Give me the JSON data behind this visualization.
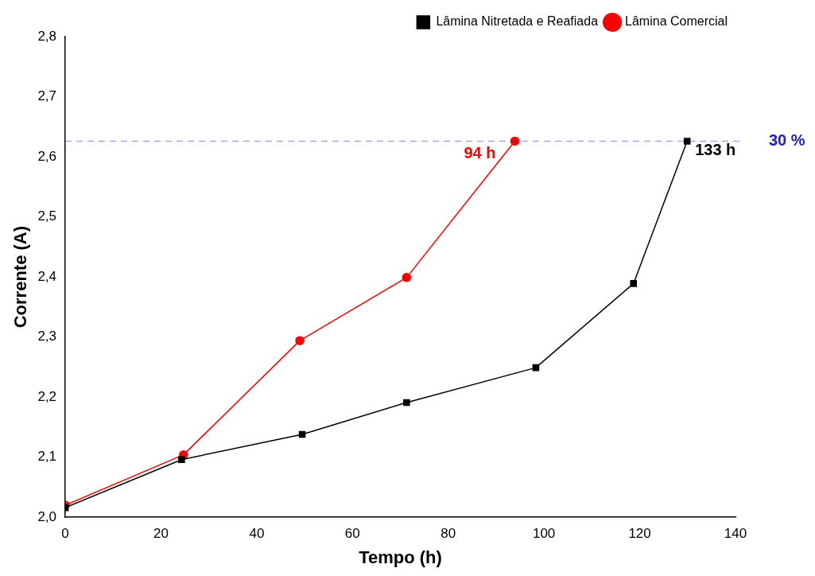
{
  "chart_data": {
    "type": "line",
    "xlabel": "Tempo (h)",
    "ylabel": "Corrente (A)",
    "xlim": [
      0,
      140
    ],
    "xticks": [
      0,
      20,
      40,
      60,
      80,
      100,
      120,
      140
    ],
    "ylim": [
      2.0,
      2.8
    ],
    "yticks": [
      {
        "value": 2.0,
        "label": "2,0"
      },
      {
        "value": 2.1,
        "label": "2,1"
      },
      {
        "value": 2.2,
        "label": "2,2"
      },
      {
        "value": 2.3,
        "label": "2,3"
      },
      {
        "value": 2.4,
        "label": "2,4"
      },
      {
        "value": 2.5,
        "label": "2,5"
      },
      {
        "value": 2.6,
        "label": "2,6"
      },
      {
        "value": 2.7,
        "label": "2,7"
      },
      {
        "value": 2.8,
        "label": "2,8"
      }
    ],
    "series": [
      {
        "name": "Lâmina Nitretada e Reafiada",
        "color": "#000000",
        "marker": "square",
        "x": [
          0,
          24.3,
          49.5,
          71.3,
          98.3,
          118.7,
          129.9
        ],
        "values": [
          2.016,
          2.096,
          2.138,
          2.191,
          2.249,
          2.389,
          2.626
        ]
      },
      {
        "name": "Lâmina Comercial",
        "color": "#ff0000",
        "marker": "circle",
        "x": [
          0,
          24.7,
          49,
          71.3,
          93.9
        ],
        "values": [
          2.02,
          2.104,
          2.294,
          2.399,
          2.626
        ]
      }
    ],
    "ref_lines": [
      {
        "axis": "y",
        "value": 2.626,
        "color": "#2020c0",
        "line_style": "dashed"
      }
    ],
    "annotations": [
      {
        "text": "133 h",
        "x": 129.9,
        "y": 2.626
      },
      {
        "text": "94 h",
        "x": 93.9,
        "y": 2.626
      },
      "30 %"
    ],
    "grid": false,
    "legend": "top right",
    "line_style": "solid"
  }
}
